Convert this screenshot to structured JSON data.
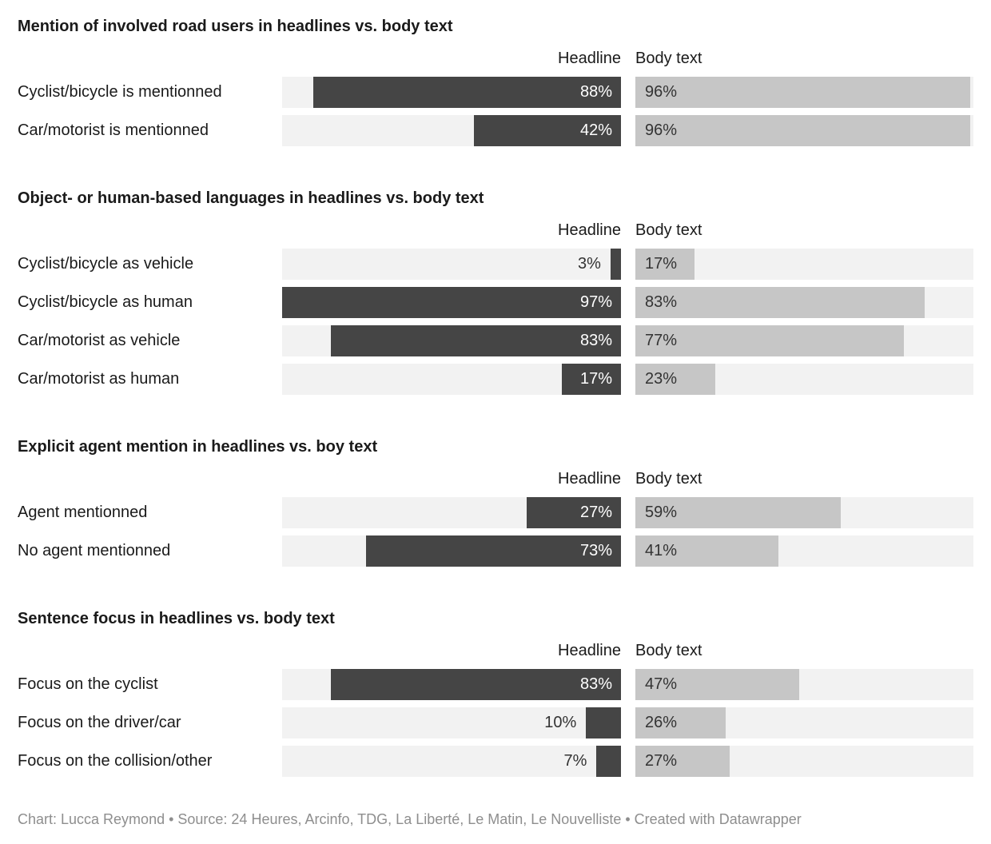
{
  "chart_data": {
    "type": "bar",
    "orientation": "horizontal",
    "unit": "%",
    "scale_max": 97,
    "column_headers": {
      "headline": "Headline",
      "body": "Body text"
    },
    "colors": {
      "headline_bar": "#454545",
      "body_bar": "#c6c6c6",
      "track": "#f2f2f2",
      "value_inside": "#ffffff",
      "value_dark": "#333333",
      "text": "#1a1a1a",
      "footer_text": "#8e8e8e"
    },
    "sections": [
      {
        "title": "Mention of involved road users in headlines vs. body text",
        "rows": [
          {
            "label": "Cyclist/bicycle is mentionned",
            "headline": 88,
            "body": 96
          },
          {
            "label": "Car/motorist is mentionned",
            "headline": 42,
            "body": 96
          }
        ]
      },
      {
        "title": "Object- or human-based languages in headlines vs. body text",
        "rows": [
          {
            "label": "Cyclist/bicycle as vehicle",
            "headline": 3,
            "body": 17
          },
          {
            "label": "Cyclist/bicycle as human",
            "headline": 97,
            "body": 83
          },
          {
            "label": "Car/motorist as vehicle",
            "headline": 83,
            "body": 77
          },
          {
            "label": "Car/motorist as human",
            "headline": 17,
            "body": 23
          }
        ]
      },
      {
        "title": "Explicit agent mention in headlines vs. boy text",
        "rows": [
          {
            "label": "Agent mentionned",
            "headline": 27,
            "body": 59
          },
          {
            "label": "No agent mentionned",
            "headline": 73,
            "body": 41
          }
        ]
      },
      {
        "title": "Sentence focus in headlines vs. body text",
        "rows": [
          {
            "label": "Focus on the cyclist",
            "headline": 83,
            "body": 47
          },
          {
            "label": "Focus on the driver/car",
            "headline": 10,
            "body": 26
          },
          {
            "label": "Focus on the collision/other",
            "headline": 7,
            "body": 27
          }
        ]
      }
    ]
  },
  "footer": {
    "text": "Chart: Lucca Reymond • Source: 24 Heures, Arcinfo, TDG, La Liberté, Le Matin, Le Nouvelliste • Created with Datawrapper"
  }
}
